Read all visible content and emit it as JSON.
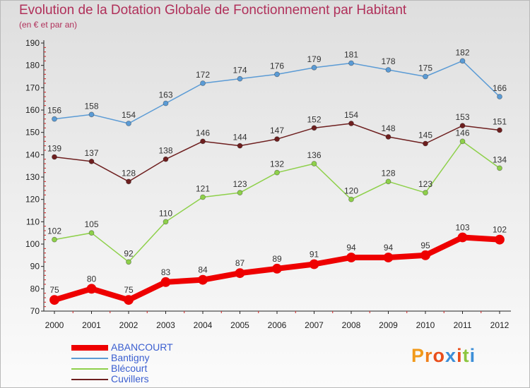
{
  "title": "Evolution de la Dotation Globale de Fonctionnement par Habitant",
  "subtitle": "(en € et par an)",
  "logo": {
    "text": "Proxiti",
    "letters": [
      {
        "ch": "P",
        "color": "#f19a1b"
      },
      {
        "ch": "r",
        "color": "#ef7f1a"
      },
      {
        "ch": "o",
        "color": "#e94e1b"
      },
      {
        "ch": "x",
        "color": "#3d8fd8"
      },
      {
        "ch": "i",
        "color": "#e94e1b"
      },
      {
        "ch": "t",
        "color": "#8cc63f"
      },
      {
        "ch": "i",
        "color": "#3d8fd8"
      }
    ]
  },
  "chart_data": {
    "type": "line",
    "title": "Evolution de la Dotation Globale de Fonctionnement par Habitant",
    "subtitle": "(en € et par an)",
    "x": [
      "2000",
      "2001",
      "2002",
      "2003",
      "2004",
      "2005",
      "2006",
      "2007",
      "2008",
      "2009",
      "2010",
      "2011",
      "2012"
    ],
    "ylim": [
      70,
      190
    ],
    "yticks": [
      70,
      80,
      90,
      100,
      110,
      120,
      130,
      140,
      150,
      160,
      170,
      180,
      190
    ],
    "grid": false,
    "legend_position": "bottom-left",
    "series": [
      {
        "name": "Bantigny",
        "color": "#5b9bd5",
        "emphasis": false,
        "values": [
          156,
          158,
          154,
          163,
          172,
          174,
          176,
          179,
          181,
          178,
          175,
          182,
          166
        ]
      },
      {
        "name": "Cuvillers",
        "color": "#6e1f1f",
        "emphasis": false,
        "values": [
          139,
          137,
          128,
          138,
          146,
          144,
          147,
          152,
          154,
          148,
          145,
          153,
          151
        ]
      },
      {
        "name": "Blécourt",
        "color": "#8ed04a",
        "emphasis": false,
        "values": [
          102,
          105,
          92,
          110,
          121,
          123,
          132,
          136,
          120,
          128,
          123,
          146,
          134
        ]
      },
      {
        "name": "ABANCOURT",
        "color": "#ee0000",
        "emphasis": true,
        "values": [
          75,
          80,
          75,
          83,
          84,
          87,
          89,
          91,
          94,
          94,
          95,
          103,
          102
        ]
      }
    ],
    "legend_order": [
      "ABANCOURT",
      "Bantigny",
      "Blécourt",
      "Cuvillers"
    ]
  }
}
